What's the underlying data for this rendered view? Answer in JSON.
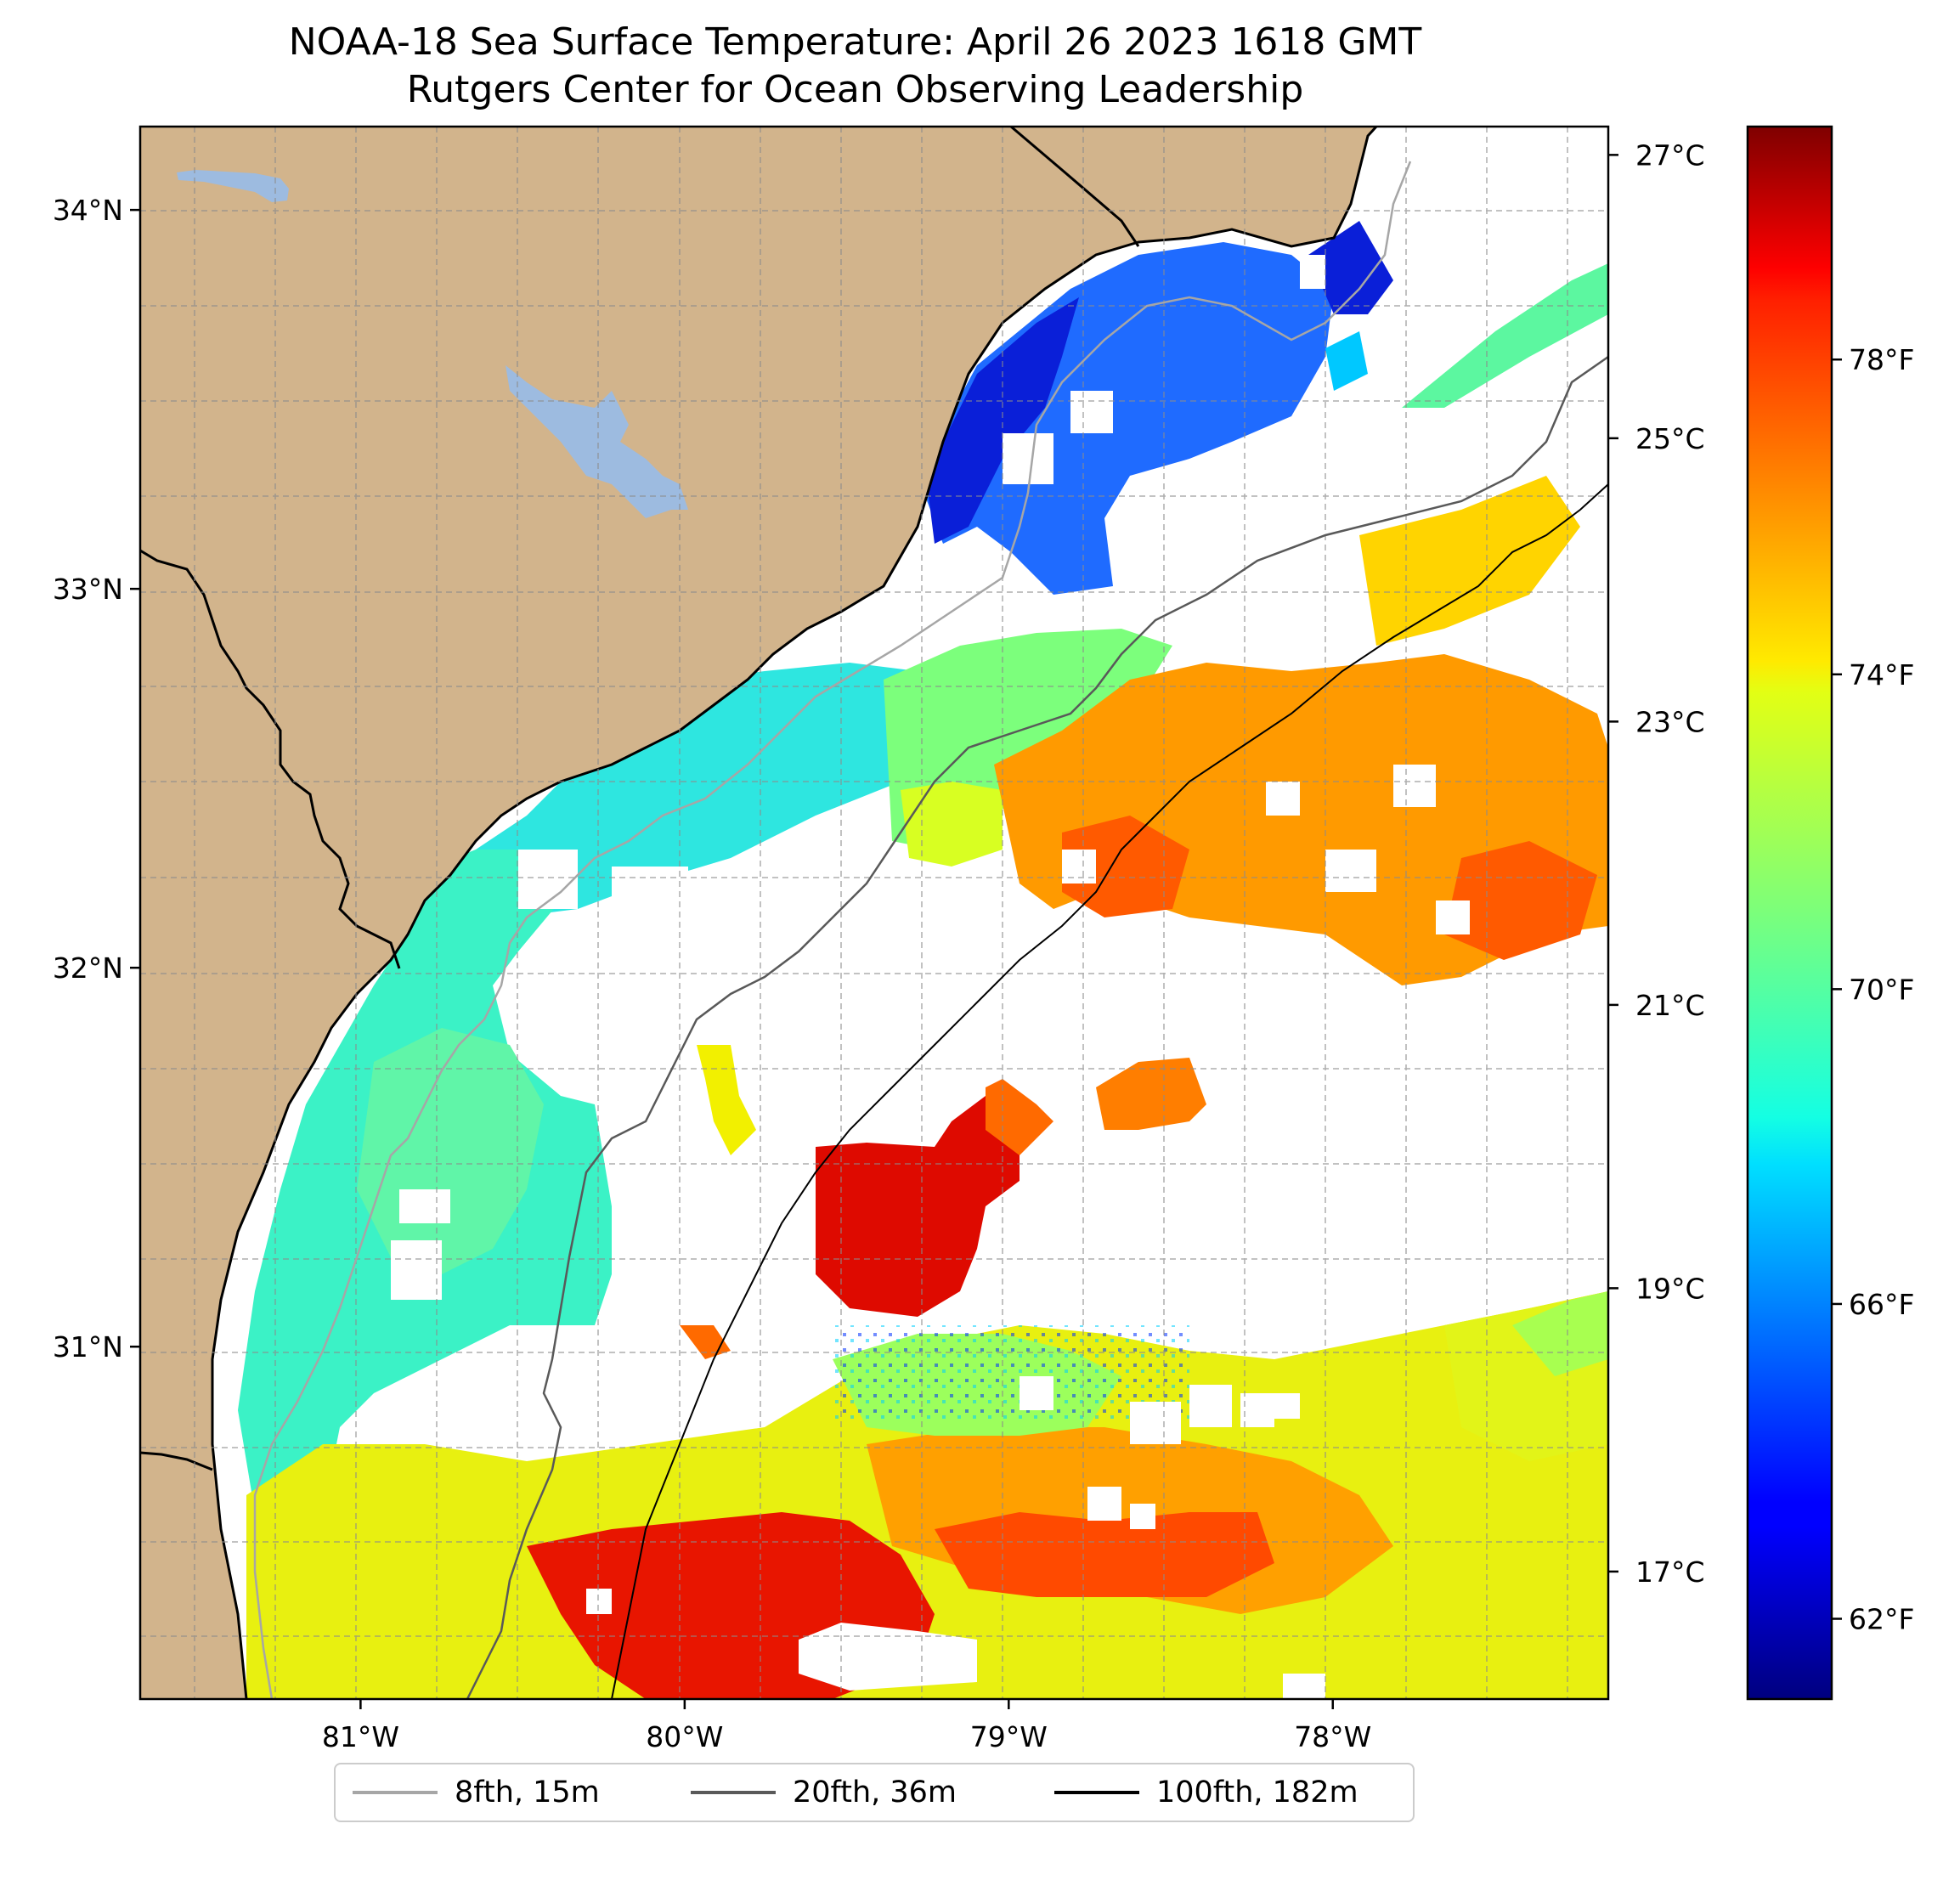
{
  "title": "NOAA-18 Sea Surface Temperature: April 26 2023 1618 GMT",
  "subtitle": "Rutgers Center for Ocean Observing Leadership",
  "map": {
    "lat_ticks": [
      {
        "value": 34,
        "label": "34°N"
      },
      {
        "value": 33,
        "label": "33°N"
      },
      {
        "value": 32,
        "label": "32°N"
      },
      {
        "value": 31,
        "label": "31°N"
      }
    ],
    "lon_ticks": [
      {
        "value": -81,
        "label": "81°W"
      },
      {
        "value": -80,
        "label": "80°W"
      },
      {
        "value": -79,
        "label": "79°W"
      },
      {
        "value": -78,
        "label": "78°W"
      }
    ],
    "lon_range": [
      -81.68,
      -77.15
    ],
    "lat_range": [
      30.07,
      34.22
    ],
    "colors": {
      "land": "#d2b48c",
      "lake": "#9dbbe0",
      "no_data": "#ffffff"
    }
  },
  "colorbar": {
    "celsius_ticks": [
      {
        "value": 27,
        "label": "27°C"
      },
      {
        "value": 25,
        "label": "25°C"
      },
      {
        "value": 23,
        "label": "23°C"
      },
      {
        "value": 21,
        "label": "21°C"
      },
      {
        "value": 19,
        "label": "19°C"
      },
      {
        "value": 17,
        "label": "17°C"
      }
    ],
    "fahrenheit_ticks": [
      {
        "value": 78,
        "label": "78°F"
      },
      {
        "value": 74,
        "label": "74°F"
      },
      {
        "value": 70,
        "label": "70°F"
      },
      {
        "value": 66,
        "label": "66°F"
      },
      {
        "value": 62,
        "label": "62°F"
      }
    ],
    "celsius_range": [
      16.1,
      27.2
    ],
    "colormap": "jet"
  },
  "legend": [
    {
      "label": "8fth, 15m",
      "color": "#a6a6a6"
    },
    {
      "label": "20fth, 36m",
      "color": "#595959"
    },
    {
      "label": "100fth, 182m",
      "color": "#000000"
    }
  ]
}
